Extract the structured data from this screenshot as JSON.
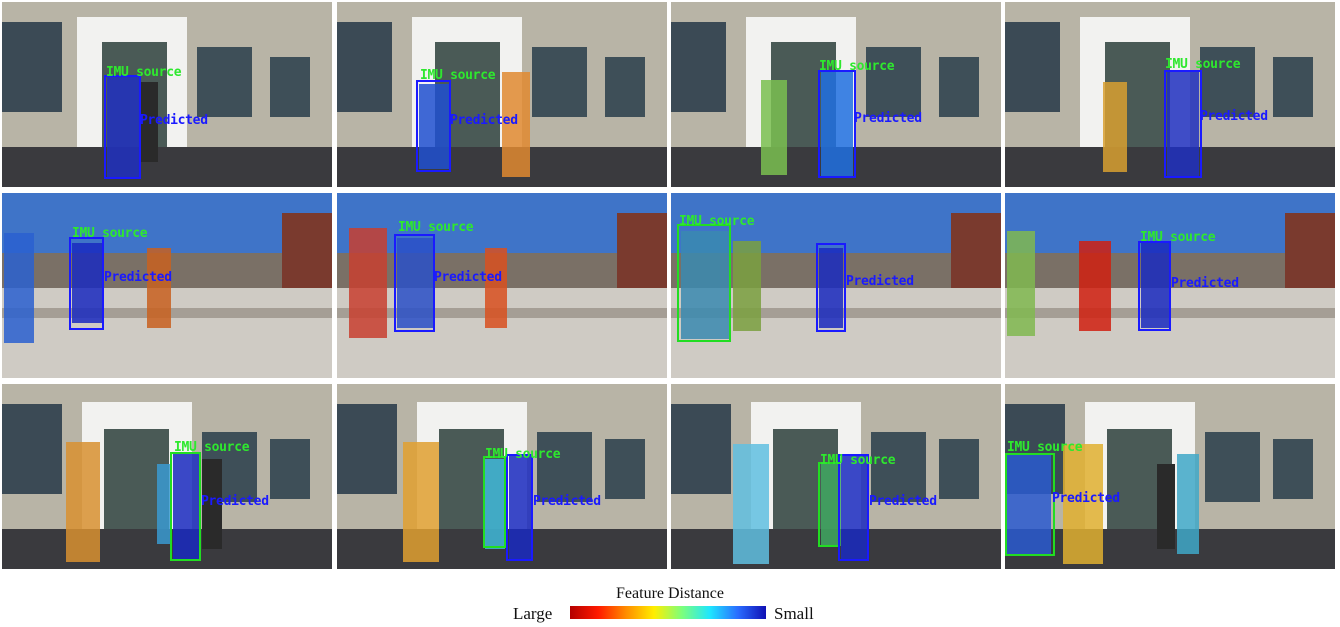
{
  "legend": {
    "title": "Feature Distance",
    "left_label": "Large",
    "right_label": "Small"
  },
  "labels": {
    "source": "IMU source",
    "predicted": "Predicted"
  },
  "colors": {
    "source_box": "#22dd22",
    "predicted_box": "#1a1aff",
    "scale_large": "#b40000",
    "scale_small": "#1010b4"
  },
  "rows": [
    {
      "scene": "building",
      "panels": 4
    },
    {
      "scene": "street",
      "panels": 4
    },
    {
      "scene": "building",
      "panels": 4
    }
  ]
}
